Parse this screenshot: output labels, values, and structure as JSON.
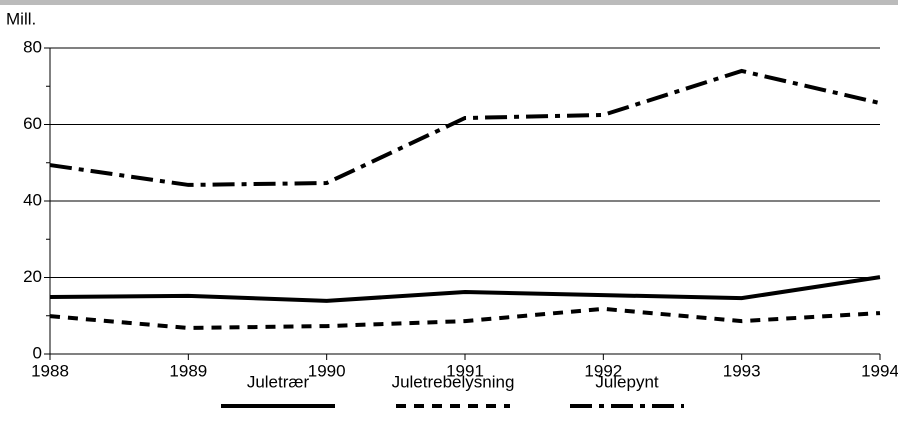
{
  "chart_data": {
    "type": "line",
    "ylabel": "Mill.",
    "x": [
      1988,
      1989,
      1990,
      1991,
      1992,
      1993,
      1994
    ],
    "xlim": [
      1988,
      1994
    ],
    "xticks": [
      1988,
      1989,
      1990,
      1991,
      1992,
      1993,
      1994
    ],
    "ylim": [
      0,
      80
    ],
    "yticks": [
      0,
      20,
      40,
      60,
      80
    ],
    "grid": true,
    "legend": "bottom",
    "series": [
      {
        "name": "Juletrær",
        "color": "#000000",
        "style": "solid",
        "values": [
          14.9,
          15.2,
          13.9,
          16.2,
          15.4,
          14.6,
          20.1
        ]
      },
      {
        "name": "Juletrebelysning",
        "color": "#000000",
        "style": "dashed",
        "values": [
          9.9,
          6.8,
          7.3,
          8.6,
          11.8,
          8.6,
          10.7
        ]
      },
      {
        "name": "Julepynt",
        "color": "#000000",
        "style": "dashdot",
        "values": [
          49.4,
          44.2,
          44.7,
          61.7,
          62.5,
          74.0,
          65.6
        ]
      }
    ]
  }
}
